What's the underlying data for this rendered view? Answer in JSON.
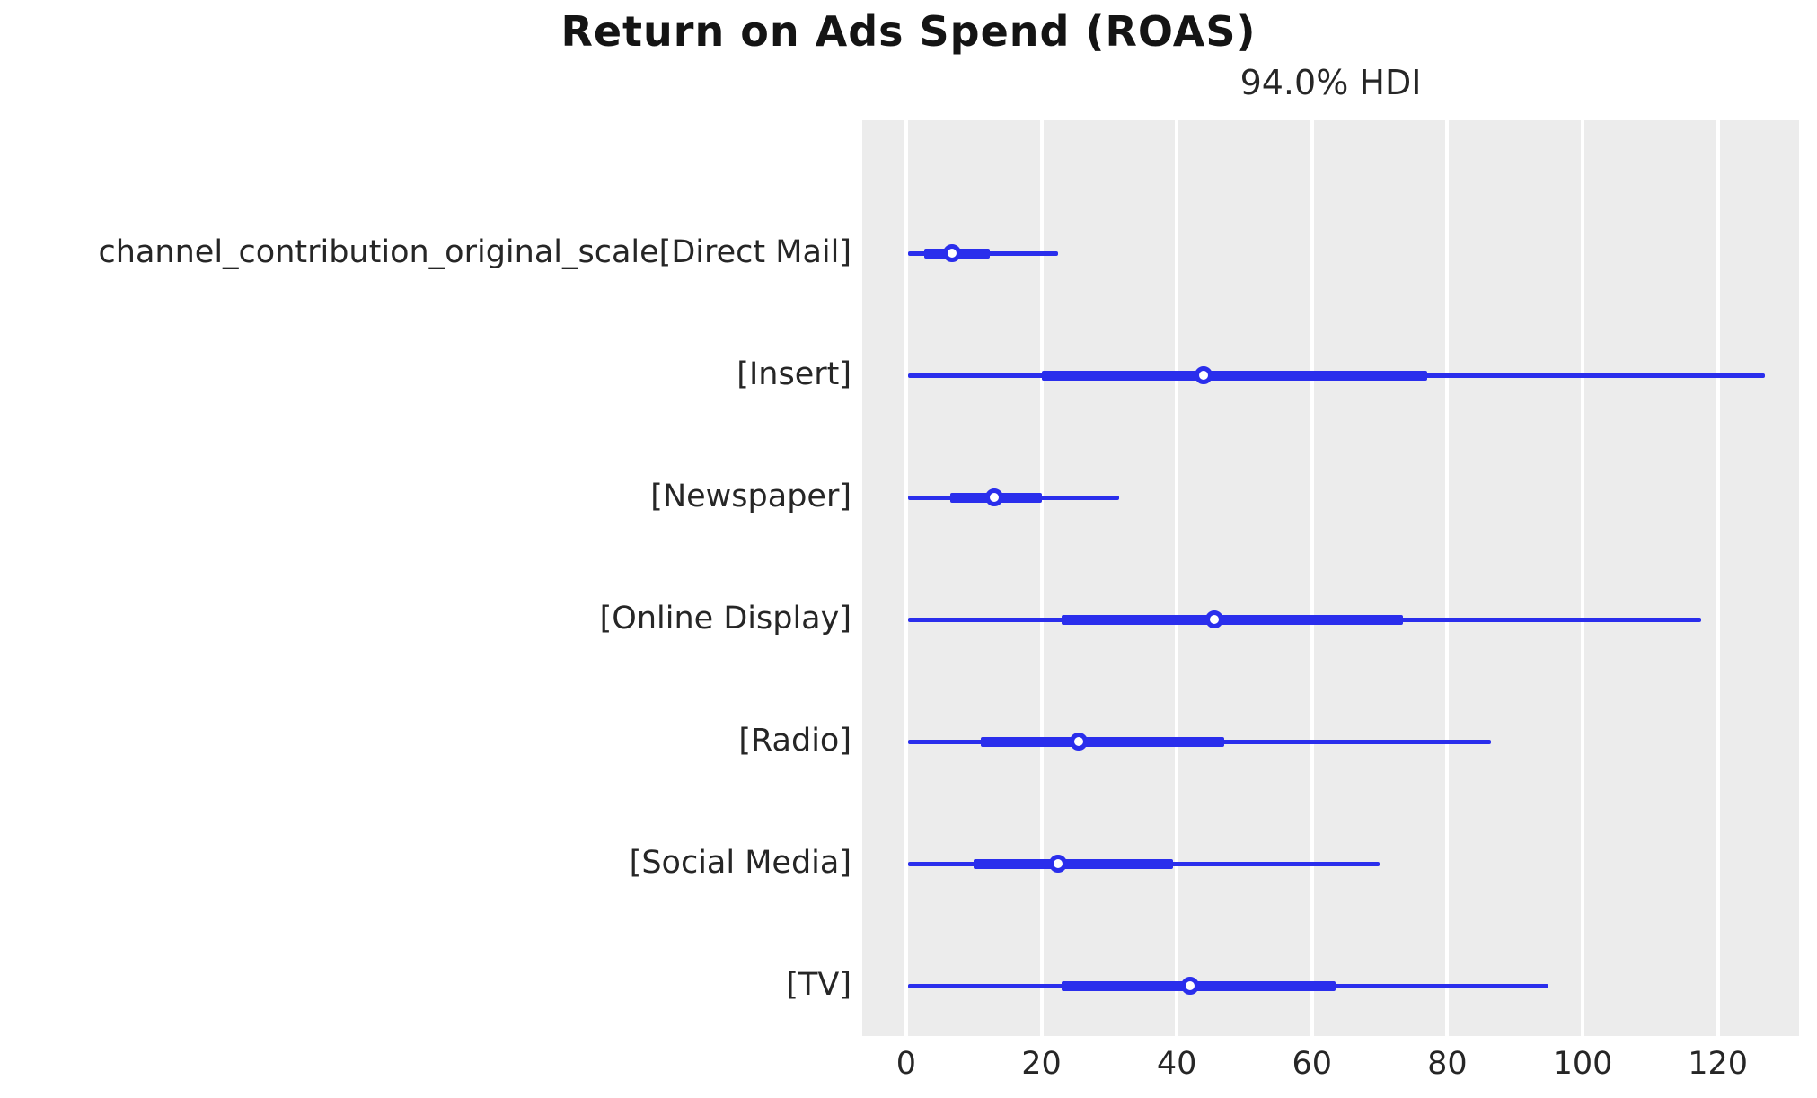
{
  "chart_data": {
    "type": "forest",
    "title": "Return on Ads Spend (ROAS)",
    "subtitle": "94.0% HDI",
    "hdi_probability_label": "94.0%",
    "xlabel": "",
    "ylabel": "",
    "x_ticks": [
      0,
      20,
      40,
      60,
      80,
      100,
      120
    ],
    "xlim": [
      -6.5,
      132
    ],
    "grid": "vertical white gridlines on grey panel",
    "legend_position": "none",
    "marker": "open circle at point estimate (median)",
    "rows": [
      {
        "label": "channel_contribution_original_scale[Direct Mail]",
        "hdi_low": 0.3,
        "quartile_low": 2.7,
        "median": 6.8,
        "quartile_high": 12.3,
        "hdi_high": 22.5
      },
      {
        "label": "[Insert]",
        "hdi_low": 0.3,
        "quartile_low": 20.0,
        "median": 44.0,
        "quartile_high": 77.0,
        "hdi_high": 127.0
      },
      {
        "label": "[Newspaper]",
        "hdi_low": 0.3,
        "quartile_low": 6.5,
        "median": 13.0,
        "quartile_high": 20.0,
        "hdi_high": 31.5
      },
      {
        "label": "[Online Display]",
        "hdi_low": 0.3,
        "quartile_low": 23.0,
        "median": 45.5,
        "quartile_high": 73.5,
        "hdi_high": 117.5
      },
      {
        "label": "[Radio]",
        "hdi_low": 0.3,
        "quartile_low": 11.0,
        "median": 25.5,
        "quartile_high": 47.0,
        "hdi_high": 86.5
      },
      {
        "label": "[Social Media]",
        "hdi_low": 0.3,
        "quartile_low": 10.0,
        "median": 22.5,
        "quartile_high": 39.5,
        "hdi_high": 70.0
      },
      {
        "label": "[TV]",
        "hdi_low": 0.3,
        "quartile_low": 23.0,
        "median": 42.0,
        "quartile_high": 63.5,
        "hdi_high": 95.0
      }
    ],
    "colors": {
      "line": "#2a2eec",
      "marker_face": "#ffffff",
      "marker_edge": "#2a2eec",
      "plot_background": "#ececec",
      "gridline": "#ffffff",
      "text": "#262626",
      "title_text": "#141414",
      "figure_background": "#ffffff"
    }
  }
}
